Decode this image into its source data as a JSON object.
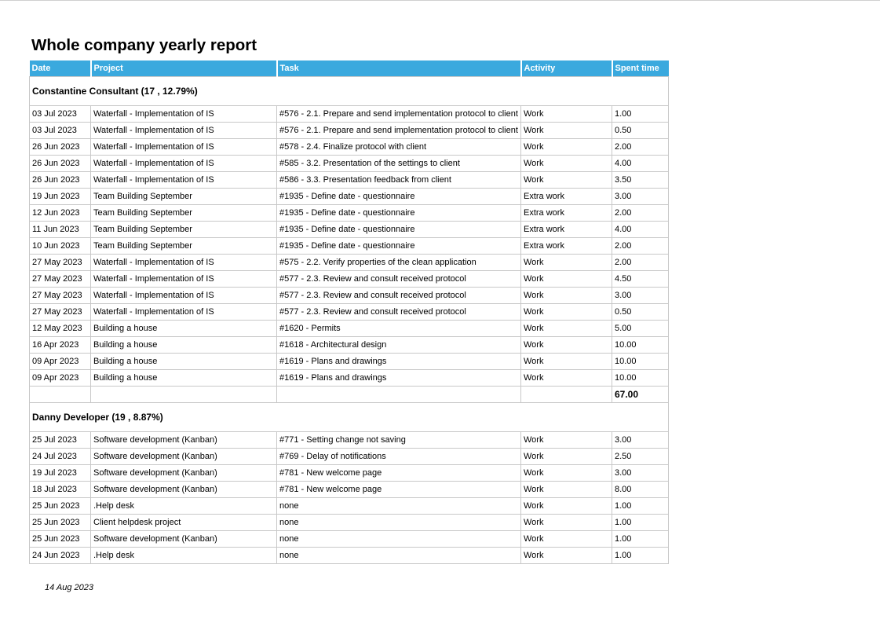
{
  "title": "Whole company yearly report",
  "header_color": "#3aa9de",
  "columns": [
    "Date",
    "Project",
    "Task",
    "Activity",
    "Spent time"
  ],
  "groups": [
    {
      "label": "Constantine Consultant (17 , 12.79%)",
      "rows": [
        [
          "03 Jul 2023",
          "Waterfall - Implementation of IS",
          "#576 - 2.1. Prepare and send implementation protocol to client",
          "Work",
          "1.00"
        ],
        [
          "03 Jul 2023",
          "Waterfall - Implementation of IS",
          "#576 - 2.1. Prepare and send implementation protocol to client",
          "Work",
          "0.50"
        ],
        [
          "26 Jun 2023",
          "Waterfall - Implementation of IS",
          "#578 - 2.4. Finalize protocol with client",
          "Work",
          "2.00"
        ],
        [
          "26 Jun 2023",
          "Waterfall - Implementation of IS",
          "#585 - 3.2. Presentation of the settings to client",
          "Work",
          "4.00"
        ],
        [
          "26 Jun 2023",
          "Waterfall - Implementation of IS",
          "#586 - 3.3. Presentation feedback from client",
          "Work",
          "3.50"
        ],
        [
          "19 Jun 2023",
          "Team Building September",
          "#1935 - Define date - questionnaire",
          "Extra work",
          "3.00"
        ],
        [
          "12 Jun 2023",
          "Team Building September",
          "#1935 - Define date - questionnaire",
          "Extra work",
          "2.00"
        ],
        [
          "11 Jun 2023",
          "Team Building September",
          "#1935 - Define date - questionnaire",
          "Extra work",
          "4.00"
        ],
        [
          "10 Jun 2023",
          "Team Building September",
          "#1935 - Define date - questionnaire",
          "Extra work",
          "2.00"
        ],
        [
          "27 May 2023",
          "Waterfall - Implementation of IS",
          "#575 - 2.2. Verify properties of the clean application",
          "Work",
          "2.00"
        ],
        [
          "27 May 2023",
          "Waterfall - Implementation of IS",
          "#577 - 2.3. Review and consult received protocol",
          "Work",
          "4.50"
        ],
        [
          "27 May 2023",
          "Waterfall - Implementation of IS",
          "#577 - 2.3. Review and consult received protocol",
          "Work",
          "3.00"
        ],
        [
          "27 May 2023",
          "Waterfall - Implementation of IS",
          "#577 - 2.3. Review and consult received protocol",
          "Work",
          "0.50"
        ],
        [
          "12 May 2023",
          "Building a house",
          "#1620 - Permits",
          "Work",
          "5.00"
        ],
        [
          "16 Apr 2023",
          "Building a house",
          "#1618 - Architectural design",
          "Work",
          "10.00"
        ],
        [
          "09 Apr 2023",
          "Building a house",
          "#1619 - Plans and drawings",
          "Work",
          "10.00"
        ],
        [
          "09 Apr 2023",
          "Building a house",
          "#1619 - Plans and drawings",
          "Work",
          "10.00"
        ]
      ],
      "total": "67.00"
    },
    {
      "label": "Danny Developer (19 , 8.87%)",
      "rows": [
        [
          "25 Jul 2023",
          "Software development (Kanban)",
          "#771 - Setting change not saving",
          "Work",
          "3.00"
        ],
        [
          "24 Jul 2023",
          "Software development (Kanban)",
          "#769 - Delay of notifications",
          "Work",
          "2.50"
        ],
        [
          "19 Jul 2023",
          "Software development (Kanban)",
          "#781 - New welcome page",
          "Work",
          "3.00"
        ],
        [
          "18 Jul 2023",
          "Software development (Kanban)",
          "#781 - New welcome page",
          "Work",
          "8.00"
        ],
        [
          "25 Jun 2023",
          ".Help desk",
          "none",
          "Work",
          "1.00"
        ],
        [
          "25 Jun 2023",
          "Client helpdesk project",
          "none",
          "Work",
          "1.00"
        ],
        [
          "25 Jun 2023",
          "Software development (Kanban)",
          "none",
          "Work",
          "1.00"
        ],
        [
          "24 Jun 2023",
          ".Help desk",
          "none",
          "Work",
          "1.00"
        ]
      ]
    }
  ],
  "footer_date": "14 Aug 2023"
}
